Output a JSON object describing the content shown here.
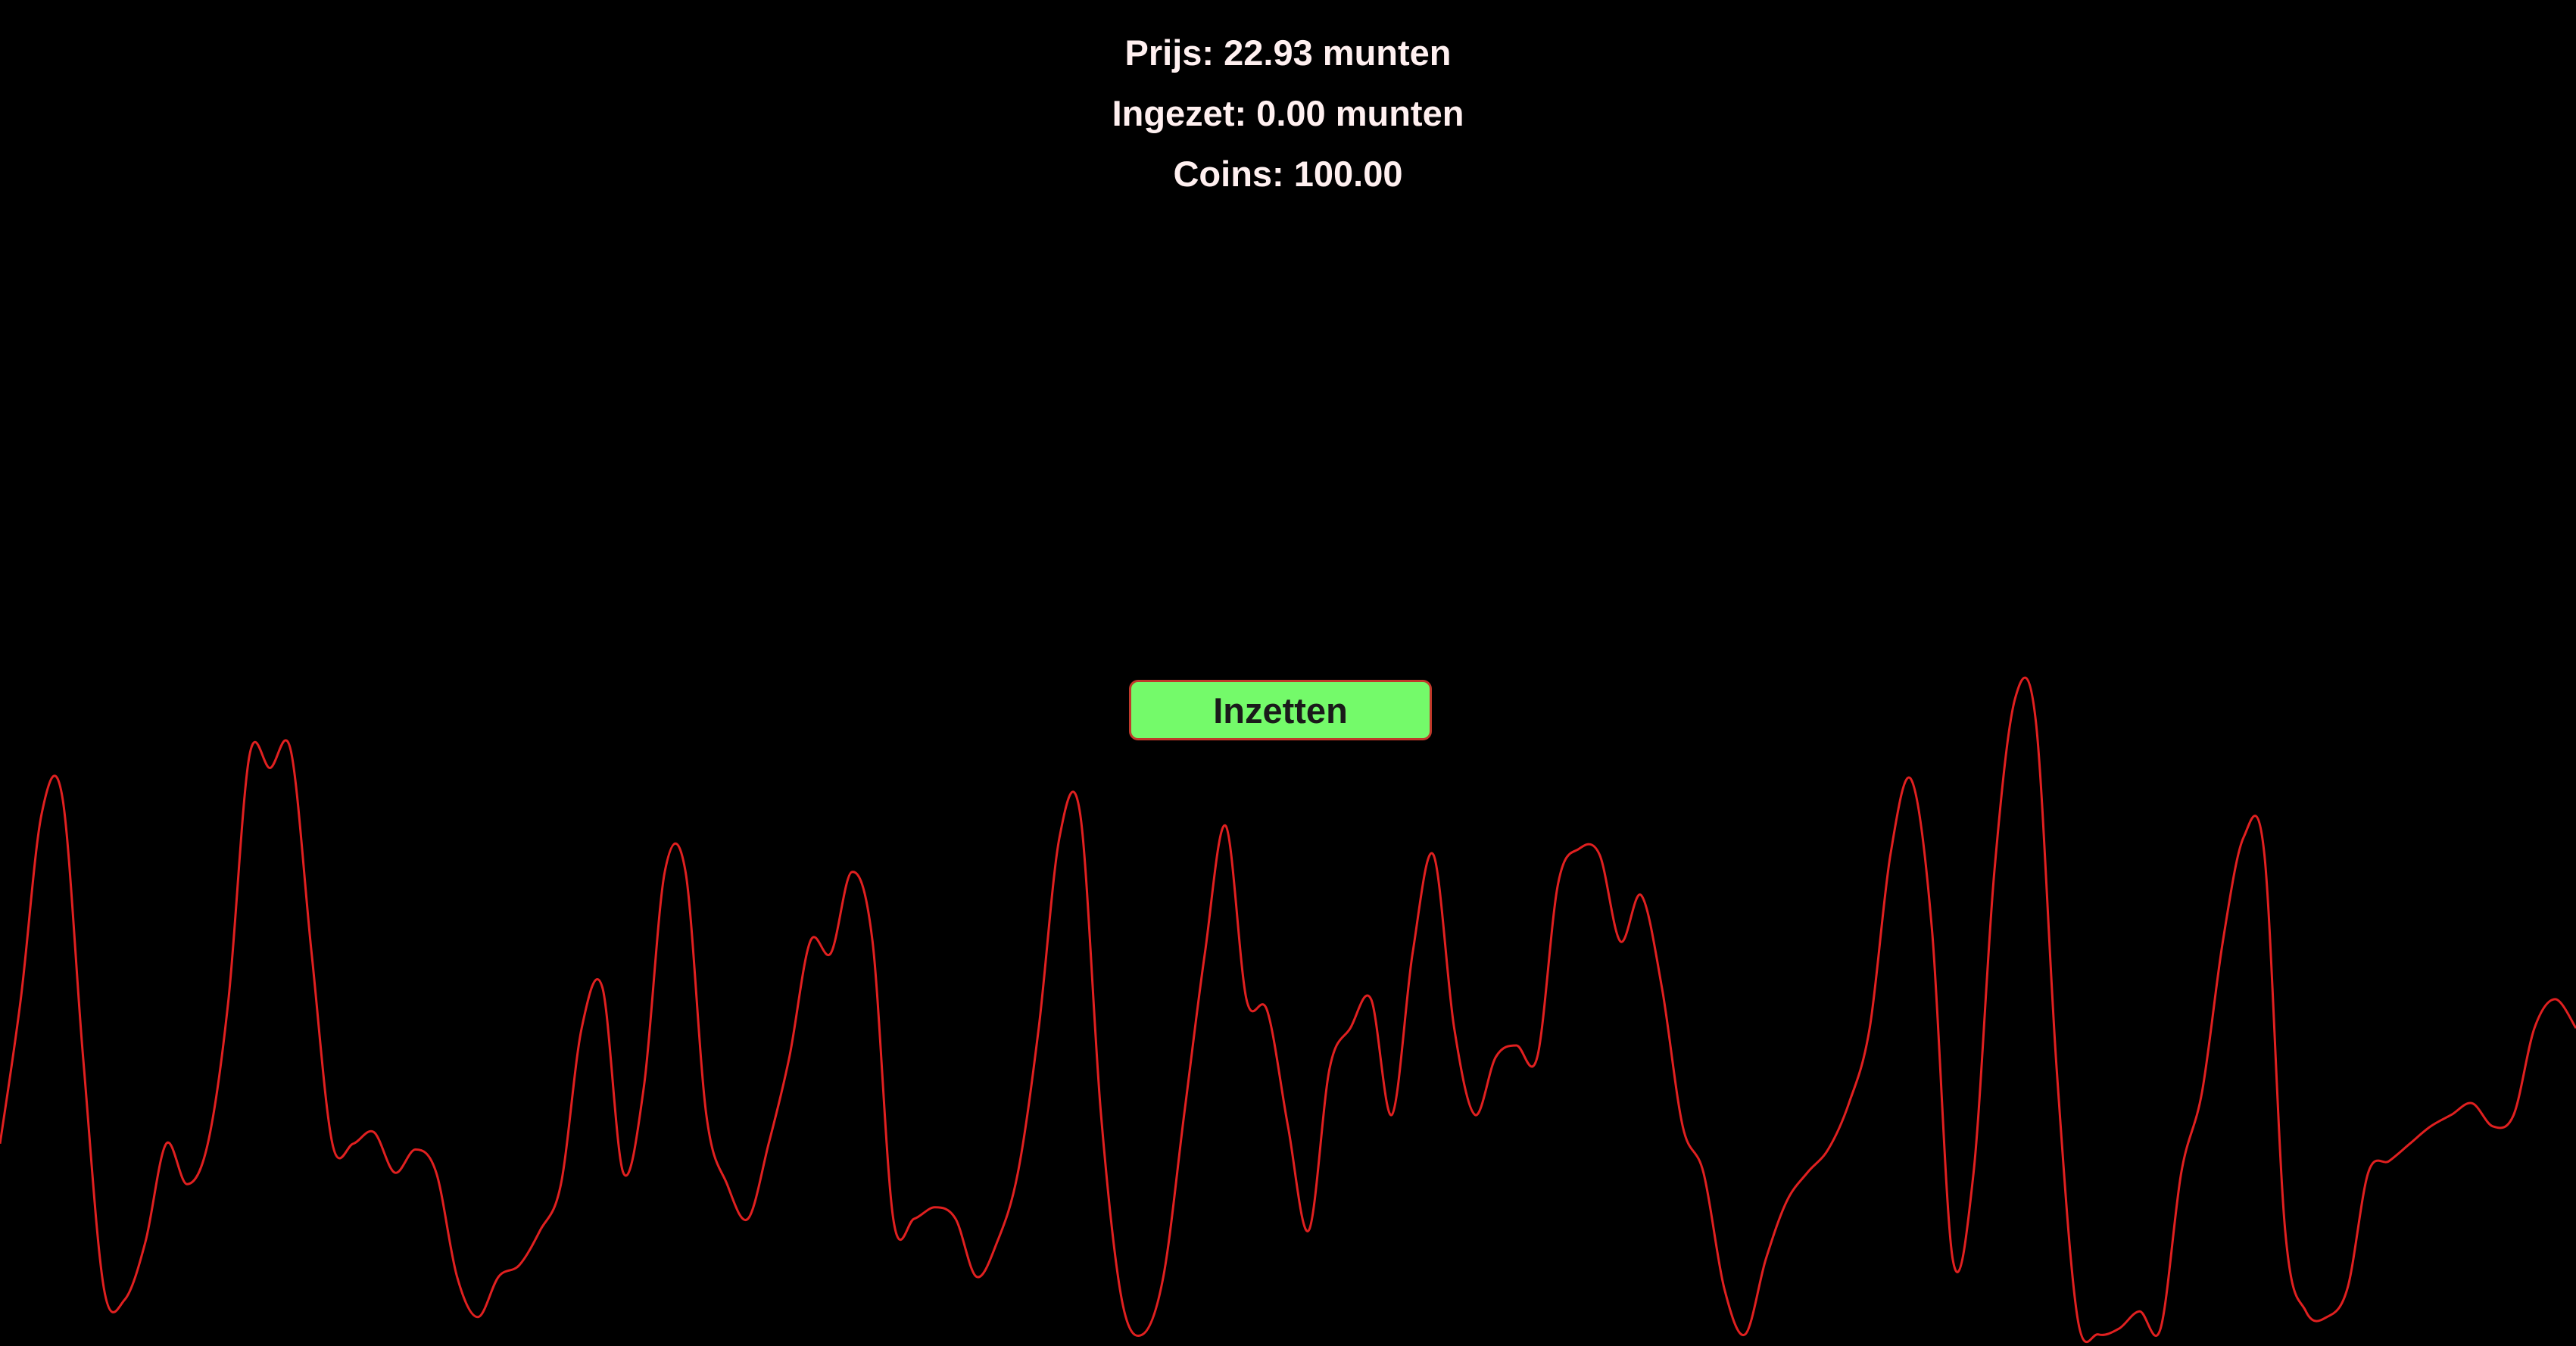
{
  "stats": {
    "price_text": "Prijs: 22.93 munten",
    "staked_text": "Ingezet: 0.00 munten",
    "coins_text": "Coins: 100.00"
  },
  "button": {
    "label": "Inzetten"
  },
  "colors": {
    "background": "#000000",
    "text": "#fff0f0",
    "button_fill": "#74fa6a",
    "button_border": "#c0392b",
    "line": "#e02020"
  },
  "chart_data": {
    "type": "line",
    "series": [
      {
        "values": [
          0.35,
          0.6,
          0.92,
          0.95,
          0.5,
          0.1,
          0.08,
          0.18,
          0.35,
          0.28,
          0.35,
          0.6,
          1.02,
          1.0,
          1.03,
          0.68,
          0.35,
          0.35,
          0.37,
          0.3,
          0.34,
          0.3,
          0.12,
          0.05,
          0.12,
          0.14,
          0.2,
          0.28,
          0.55,
          0.62,
          0.3,
          0.45,
          0.82,
          0.82,
          0.4,
          0.28,
          0.22,
          0.35,
          0.5,
          0.7,
          0.68,
          0.82,
          0.7,
          0.22,
          0.22,
          0.24,
          0.22,
          0.12,
          0.18,
          0.3,
          0.55,
          0.88,
          0.92,
          0.4,
          0.08,
          0.02,
          0.12,
          0.4,
          0.68,
          0.9,
          0.6,
          0.58,
          0.38,
          0.2,
          0.48,
          0.55,
          0.6,
          0.4,
          0.68,
          0.85,
          0.55,
          0.4,
          0.5,
          0.52,
          0.5,
          0.8,
          0.86,
          0.85,
          0.7,
          0.78,
          0.62,
          0.38,
          0.3,
          0.1,
          0.02,
          0.15,
          0.25,
          0.3,
          0.34,
          0.42,
          0.55,
          0.85,
          0.98,
          0.72,
          0.15,
          0.3,
          0.82,
          1.12,
          1.08,
          0.48,
          0.05,
          0.02,
          0.03,
          0.06,
          0.03,
          0.3,
          0.44,
          0.7,
          0.88,
          0.85,
          0.2,
          0.06,
          0.05,
          0.1,
          0.3,
          0.32,
          0.35,
          0.38,
          0.4,
          0.42,
          0.38,
          0.4,
          0.55,
          0.6,
          0.55
        ],
        "ylim": [
          0,
          1.15
        ]
      }
    ]
  }
}
